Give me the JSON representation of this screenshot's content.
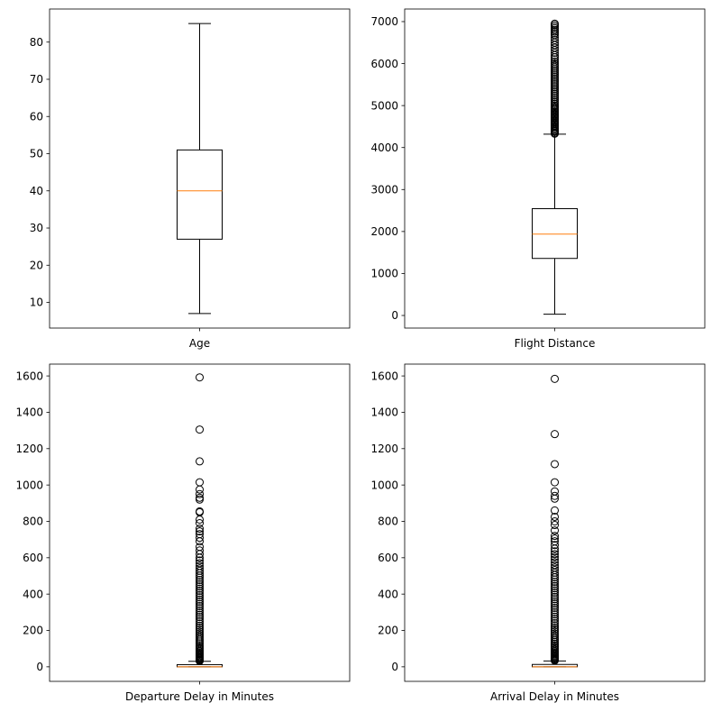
{
  "chart_data": [
    {
      "type": "boxplot",
      "xlabel": "Age",
      "ylim": [
        3.1,
        88.9
      ],
      "ticks": [
        10,
        20,
        30,
        40,
        50,
        60,
        70,
        80
      ],
      "whisker_low": 7,
      "q1": 27,
      "median": 40,
      "q3": 51,
      "whisker_high": 85,
      "outliers": []
    },
    {
      "type": "boxplot",
      "xlabel": "Flight Distance",
      "ylim": [
        -300,
        7300
      ],
      "ticks": [
        0,
        1000,
        2000,
        3000,
        4000,
        5000,
        6000,
        7000
      ],
      "whisker_low": 31,
      "q1": 1359,
      "median": 1937,
      "q3": 2544,
      "whisker_high": 4318,
      "outliers": [
        4330,
        4350,
        4380,
        4400,
        4430,
        4460,
        4490,
        4520,
        4550,
        4580,
        4610,
        4640,
        4670,
        4700,
        4730,
        4760,
        4790,
        4820,
        4850,
        4880,
        4910,
        4940,
        4970,
        5000,
        5040,
        5080,
        5120,
        5160,
        5200,
        5240,
        5280,
        5320,
        5360,
        5400,
        5440,
        5480,
        5520,
        5560,
        5600,
        5640,
        5680,
        5720,
        5760,
        5800,
        5840,
        5880,
        5920,
        5960,
        6000,
        6050,
        6100,
        6150,
        6200,
        6260,
        6320,
        6380,
        6440,
        6500,
        6560,
        6620,
        6680,
        6720,
        6760,
        6800,
        6840,
        6880,
        6920,
        6951
      ]
    },
    {
      "type": "boxplot",
      "xlabel": "Departure Delay in Minutes",
      "ylim": [
        -80,
        1665
      ],
      "ticks": [
        0,
        200,
        400,
        600,
        800,
        1000,
        1200,
        1400,
        1600
      ],
      "whisker_low": 0,
      "q1": 0,
      "median": 0,
      "q3": 12,
      "whisker_high": 30,
      "outliers": [
        32,
        36,
        40,
        45,
        50,
        55,
        60,
        66,
        72,
        78,
        85,
        92,
        100,
        108,
        116,
        125,
        134,
        143,
        152,
        162,
        172,
        182,
        193,
        204,
        215,
        226,
        238,
        250,
        262,
        274,
        286,
        298,
        310,
        322,
        334,
        346,
        358,
        370,
        382,
        394,
        406,
        418,
        430,
        442,
        454,
        466,
        478,
        490,
        502,
        515,
        528,
        541,
        555,
        570,
        585,
        600,
        620,
        640,
        660,
        690,
        710,
        730,
        745,
        760,
        790,
        810,
        850,
        855,
        920,
        930,
        950,
        975,
        1015,
        1130,
        1305,
        1592
      ]
    },
    {
      "type": "boxplot",
      "xlabel": "Arrival Delay in Minutes",
      "ylim": [
        -80,
        1665
      ],
      "ticks": [
        0,
        200,
        400,
        600,
        800,
        1000,
        1200,
        1400,
        1600
      ],
      "whisker_low": 0,
      "q1": 0,
      "median": 0,
      "q3": 13,
      "whisker_high": 32,
      "outliers": [
        34,
        38,
        42,
        47,
        52,
        57,
        62,
        68,
        74,
        80,
        87,
        94,
        102,
        110,
        118,
        127,
        136,
        145,
        154,
        164,
        174,
        184,
        195,
        206,
        217,
        228,
        240,
        252,
        264,
        276,
        288,
        300,
        312,
        324,
        336,
        348,
        360,
        372,
        384,
        396,
        408,
        420,
        432,
        444,
        456,
        468,
        480,
        492,
        505,
        518,
        532,
        546,
        560,
        575,
        590,
        605,
        620,
        635,
        650,
        670,
        690,
        705,
        720,
        750,
        780,
        800,
        825,
        860,
        925,
        940,
        965,
        1015,
        1115,
        1280,
        1584
      ]
    }
  ],
  "colors": {
    "box": "#000000",
    "median": "#ff7f0e",
    "background": "#ffffff"
  }
}
